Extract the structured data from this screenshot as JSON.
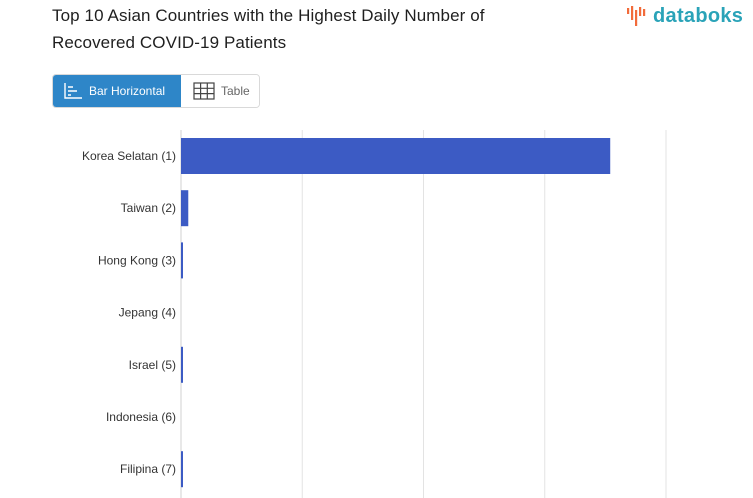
{
  "header": {
    "title_line1": "Top 10 Asian Countries with the Highest Daily Number of",
    "title_line2": "Recovered COVID-19 Patients",
    "brand": "databoks"
  },
  "view_toggle": {
    "options": [
      {
        "label": "Bar Horizontal",
        "icon": "bar-chart-icon",
        "active": true
      },
      {
        "label": "Table",
        "icon": "table-icon",
        "active": false
      }
    ]
  },
  "colors": {
    "bar": "#3c5bc4",
    "toggle_active": "#2e86c8",
    "brand_text": "#2aa3b8",
    "brand_mark": "#f26b3a",
    "grid": "#e3e3e3"
  },
  "chart_data": {
    "type": "bar",
    "orientation": "horizontal",
    "categories": [
      "Korea Selatan (1)",
      "Taiwan (2)",
      "Hong Kong (3)",
      "Jepang (4)",
      "Israel (5)",
      "Indonesia (6)",
      "Filipina (7)"
    ],
    "values": [
      1770,
      30,
      8,
      0,
      5,
      0,
      5
    ],
    "xlim": [
      0,
      2000
    ],
    "grid": true,
    "xlabel": "",
    "ylabel": ""
  }
}
